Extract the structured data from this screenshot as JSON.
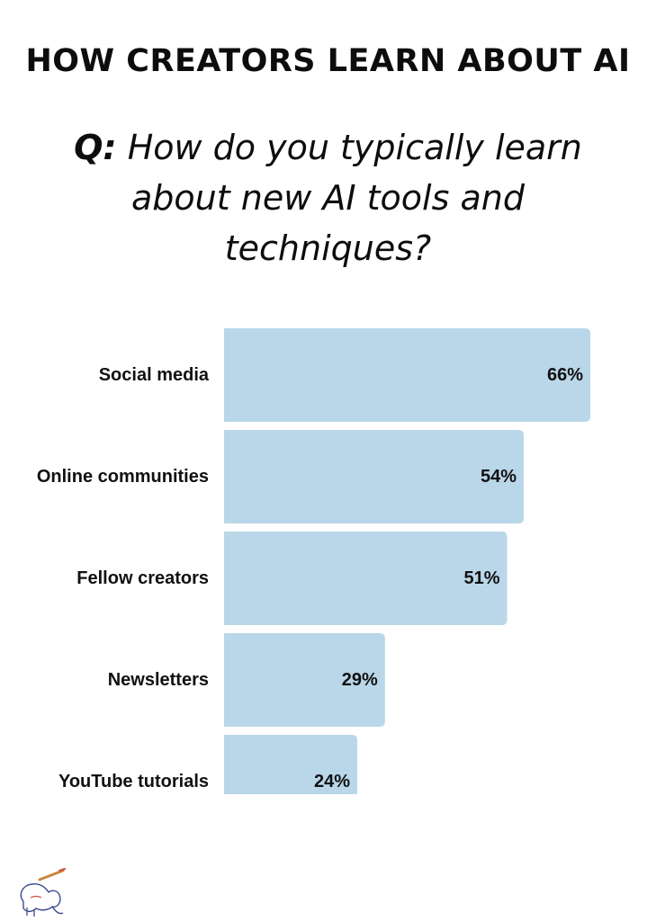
{
  "title": "HOW CREATORS LEARN ABOUT AI",
  "question": {
    "prefix": "Q:",
    "text": "How do you typically learn about new AI tools and techniques?"
  },
  "colors": {
    "bar": "#bad7e9",
    "text": "#111111",
    "background": "#ffffff"
  },
  "logo_icon": "elephant-logo-icon",
  "chart_data": {
    "type": "bar",
    "orientation": "horizontal",
    "categories": [
      "Social media",
      "Online communities",
      "Fellow creators",
      "Newsletters",
      "YouTube tutorials"
    ],
    "values": [
      66,
      54,
      51,
      29,
      24
    ],
    "value_labels": [
      "66%",
      "54%",
      "51%",
      "29%",
      "24%"
    ],
    "unit": "%",
    "xlim": [
      0,
      66
    ],
    "grid": false,
    "legend": "none"
  }
}
